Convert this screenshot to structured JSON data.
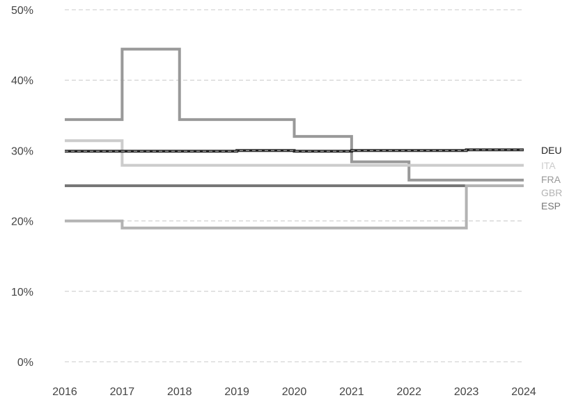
{
  "chart_data": {
    "type": "line",
    "step": "post",
    "x": [
      "2016",
      "2017",
      "2018",
      "2019",
      "2020",
      "2021",
      "2022",
      "2023",
      "2024"
    ],
    "ylim": [
      0,
      50
    ],
    "yticks": [
      "0%",
      "10%",
      "20%",
      "30%",
      "40%",
      "50%"
    ],
    "ytick_values": [
      0,
      10,
      20,
      30,
      40,
      50
    ],
    "grid": true,
    "legend": "right-end labels",
    "series": [
      {
        "name": "DEU",
        "color": "#222222",
        "dashed_overlay": true,
        "values": [
          29.9,
          29.9,
          29.9,
          30.0,
          29.9,
          30.0,
          30.0,
          30.1,
          30.1
        ]
      },
      {
        "name": "ITA",
        "color": "#cccccc",
        "values": [
          31.4,
          27.9,
          27.9,
          27.9,
          27.9,
          27.9,
          27.9,
          27.9,
          27.9
        ]
      },
      {
        "name": "FRA",
        "color": "#999999",
        "values": [
          34.4,
          44.4,
          34.4,
          34.4,
          32.0,
          28.4,
          25.8,
          25.8,
          25.8
        ]
      },
      {
        "name": "GBR",
        "color": "#b3b3b3",
        "values": [
          20.0,
          19.0,
          19.0,
          19.0,
          19.0,
          19.0,
          19.0,
          25.0,
          25.0
        ]
      },
      {
        "name": "ESP",
        "color": "#777777",
        "values": [
          25.0,
          25.0,
          25.0,
          25.0,
          25.0,
          25.0,
          25.0,
          25.0,
          25.0
        ]
      }
    ]
  }
}
